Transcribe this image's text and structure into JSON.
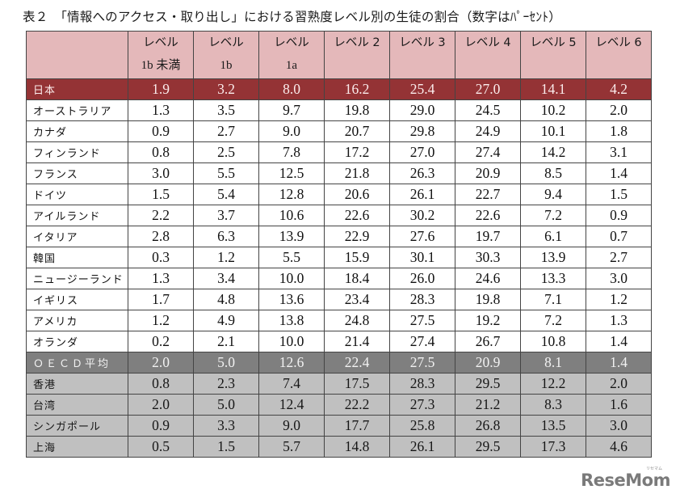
{
  "title": "表２　「情報へのアクセス・取り出し」における習熟度レベル別の生徒の割合（数字はﾊﾟｰｾﾝﾄ）",
  "table": {
    "headers": [
      {
        "line1": "",
        "line2": ""
      },
      {
        "line1": "レベル",
        "line2": "1b 未満"
      },
      {
        "line1": "レベル",
        "line2": "1b"
      },
      {
        "line1": "レベル",
        "line2": "1a"
      },
      {
        "line1": "レベル 2",
        "line2": ""
      },
      {
        "line1": "レベル 3",
        "line2": ""
      },
      {
        "line1": "レベル 4",
        "line2": ""
      },
      {
        "line1": "レベル 5",
        "line2": ""
      },
      {
        "line1": "レベル 6",
        "line2": ""
      }
    ],
    "rows": [
      {
        "country": "日本",
        "style": "japan",
        "values": [
          "1.9",
          "3.2",
          "8.0",
          "16.2",
          "25.4",
          "27.0",
          "14.1",
          "4.2"
        ]
      },
      {
        "country": "オーストラリア",
        "style": "normal",
        "values": [
          "1.3",
          "3.5",
          "9.7",
          "19.8",
          "29.0",
          "24.5",
          "10.2",
          "2.0"
        ]
      },
      {
        "country": "カナダ",
        "style": "normal",
        "values": [
          "0.9",
          "2.7",
          "9.0",
          "20.7",
          "29.8",
          "24.9",
          "10.1",
          "1.8"
        ]
      },
      {
        "country": "フィンランド",
        "style": "normal",
        "values": [
          "0.8",
          "2.5",
          "7.8",
          "17.2",
          "27.0",
          "27.4",
          "14.2",
          "3.1"
        ]
      },
      {
        "country": "フランス",
        "style": "normal",
        "values": [
          "3.0",
          "5.5",
          "12.5",
          "21.8",
          "26.3",
          "20.9",
          "8.5",
          "1.4"
        ]
      },
      {
        "country": "ドイツ",
        "style": "normal",
        "values": [
          "1.5",
          "5.4",
          "12.8",
          "20.6",
          "26.1",
          "22.7",
          "9.4",
          "1.5"
        ]
      },
      {
        "country": "アイルランド",
        "style": "normal",
        "values": [
          "2.2",
          "3.7",
          "10.6",
          "22.6",
          "30.2",
          "22.6",
          "7.2",
          "0.9"
        ]
      },
      {
        "country": "イタリア",
        "style": "normal",
        "values": [
          "2.8",
          "6.3",
          "13.9",
          "22.9",
          "27.6",
          "19.7",
          "6.1",
          "0.7"
        ]
      },
      {
        "country": "韓国",
        "style": "normal",
        "values": [
          "0.3",
          "1.2",
          "5.5",
          "15.9",
          "30.1",
          "30.3",
          "13.9",
          "2.7"
        ]
      },
      {
        "country": "ニュージーランド",
        "style": "normal",
        "values": [
          "1.3",
          "3.4",
          "10.0",
          "18.4",
          "26.0",
          "24.6",
          "13.3",
          "3.0"
        ]
      },
      {
        "country": "イギリス",
        "style": "normal",
        "values": [
          "1.7",
          "4.8",
          "13.6",
          "23.4",
          "28.3",
          "19.8",
          "7.1",
          "1.2"
        ]
      },
      {
        "country": "アメリカ",
        "style": "normal",
        "values": [
          "1.2",
          "4.9",
          "13.8",
          "24.8",
          "27.5",
          "19.2",
          "7.2",
          "1.3"
        ]
      },
      {
        "country": "オランダ",
        "style": "normal",
        "values": [
          "0.2",
          "2.1",
          "10.0",
          "21.4",
          "27.4",
          "26.7",
          "10.8",
          "1.4"
        ]
      },
      {
        "country": "ＯＥＣＤ平均",
        "style": "oecd",
        "values": [
          "2.0",
          "5.0",
          "12.6",
          "22.4",
          "27.5",
          "20.9",
          "8.1",
          "1.4"
        ]
      },
      {
        "country": "香港",
        "style": "asia",
        "values": [
          "0.8",
          "2.3",
          "7.4",
          "17.5",
          "28.3",
          "29.5",
          "12.2",
          "2.0"
        ]
      },
      {
        "country": "台湾",
        "style": "asia",
        "values": [
          "2.0",
          "5.0",
          "12.4",
          "22.2",
          "27.3",
          "21.2",
          "8.3",
          "1.6"
        ]
      },
      {
        "country": "シンガポール",
        "style": "asia",
        "values": [
          "0.9",
          "3.3",
          "9.0",
          "17.7",
          "25.8",
          "26.8",
          "13.5",
          "3.0"
        ]
      },
      {
        "country": "上海",
        "style": "asia",
        "values": [
          "0.5",
          "1.5",
          "5.7",
          "14.8",
          "26.1",
          "29.5",
          "17.3",
          "4.6"
        ]
      }
    ]
  },
  "colors": {
    "header_bg": "#e4b8ba",
    "japan_bg": "#943335",
    "oecd_bg": "#7f7f7f",
    "asia_bg": "#c0c0c0",
    "normal_bg": "#ffffff",
    "border": "#444444"
  },
  "watermark": {
    "logo": "ReseMom",
    "ruby": "リセマム"
  }
}
